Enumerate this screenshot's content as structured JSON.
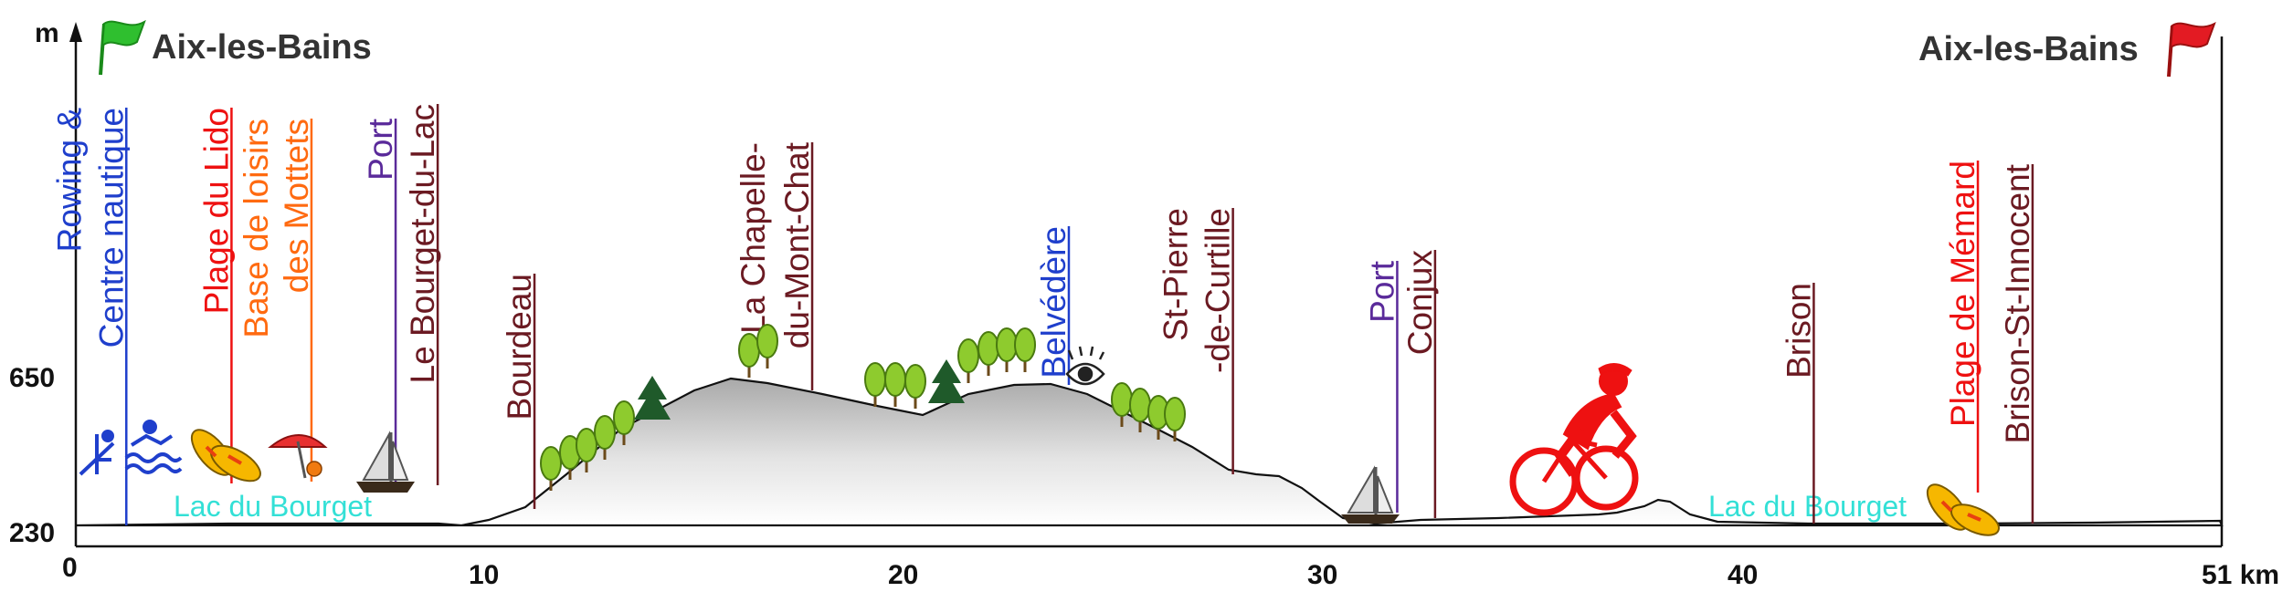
{
  "chart_data": {
    "type": "area",
    "y_unit": "m",
    "x_unit": "km",
    "x_ticks": [
      "0",
      "10",
      "20",
      "30",
      "40",
      "51 km"
    ],
    "y_ticks": [
      "650",
      "230"
    ],
    "start_label": "Aix-les-Bains",
    "end_label": "Aix-les-Bains",
    "x_range": [
      0,
      51
    ],
    "grid": false,
    "markers": [
      {
        "lines": [
          "Rowing &",
          "Centre nautique"
        ],
        "km": 1.2,
        "color": "#1f3fcc"
      },
      {
        "lines": [
          "Plage du Lido"
        ],
        "km": 3.7,
        "color": "#ee1111"
      },
      {
        "lines": [
          "Base de loisirs",
          "des Mottets"
        ],
        "km": 5.6,
        "color": "#ff6a10"
      },
      {
        "lines": [
          "Port"
        ],
        "km": 7.6,
        "color": "#5a2a9a"
      },
      {
        "lines": [
          "Le Bourget-du-Lac"
        ],
        "km": 8.6,
        "color": "#6b1a22"
      },
      {
        "lines": [
          "Bourdeau"
        ],
        "km": 10.9,
        "color": "#6b1a22"
      },
      {
        "lines": [
          "La Chapelle-",
          "du-Mont-Chat"
        ],
        "km": 17.5,
        "color": "#6b1a22"
      },
      {
        "lines": [
          "Belvédère"
        ],
        "km": 23.6,
        "color": "#1f3fcc"
      },
      {
        "lines": [
          "St-Pierre",
          "-de-Curtille"
        ],
        "km": 27.5,
        "color": "#6b1a22"
      },
      {
        "lines": [
          "Port"
        ],
        "km": 31.1,
        "color": "#5a2a9a"
      },
      {
        "lines": [
          "Conjux"
        ],
        "km": 32.0,
        "color": "#6b1a22"
      },
      {
        "lines": [
          "Brison"
        ],
        "km": 41.0,
        "color": "#6b1a22"
      },
      {
        "lines": [
          "Plage de Mémard"
        ],
        "km": 44.9,
        "color": "#ee1111"
      },
      {
        "lines": [
          "Brison-St-Innocent"
        ],
        "km": 46.2,
        "color": "#6b1a22"
      }
    ]
  },
  "lake_labels": [
    "Lac du Bourget",
    "Lac du Bourget"
  ],
  "colors": {
    "profile_fill_top": "#a9a9a9",
    "profile_fill_bottom": "#ffffff",
    "cyclist": "#ee1111",
    "start_flag": "#2fbf2f",
    "end_flag": "#e31b23",
    "lake_text": "#33e0d6"
  },
  "icons": [
    "rowing-icon",
    "swimming-icon",
    "flip-flops-icon",
    "beach-umbrella-icon",
    "sailboat-icon",
    "tree-icon",
    "fir-tree-icon",
    "eye-icon",
    "cyclist-icon",
    "flag-icon"
  ]
}
